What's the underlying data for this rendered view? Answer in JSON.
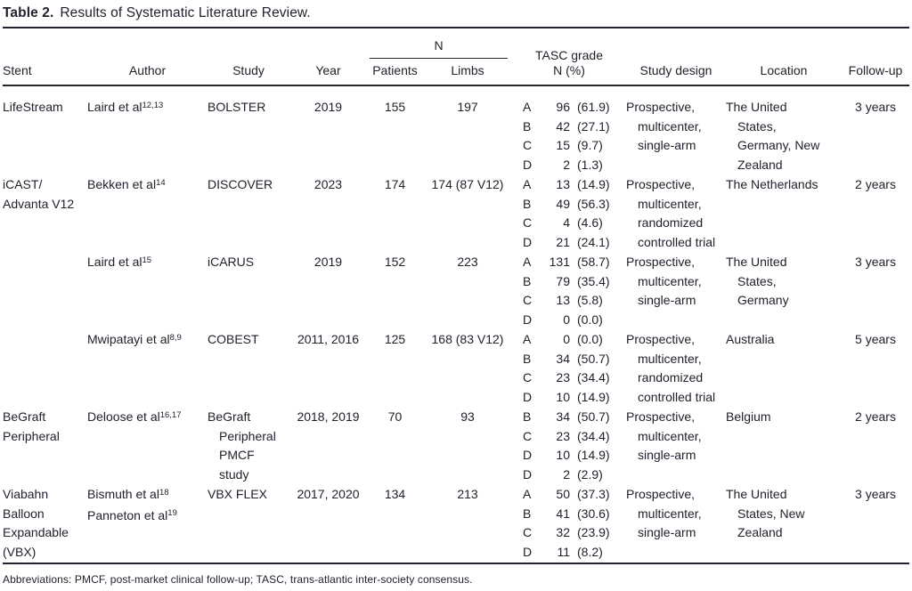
{
  "title": {
    "label": "Table 2.",
    "text": "Results of Systematic Literature Review."
  },
  "colors": {
    "ink": "#20222d",
    "rule": "#23242e",
    "background": "#ffffff"
  },
  "header": {
    "stent": "Stent",
    "author": "Author",
    "study": "Study",
    "year": "Year",
    "n_group": "N",
    "patients": "Patients",
    "limbs": "Limbs",
    "tasc": "TASC grade\nN (%)",
    "design": "Study design",
    "location": "Location",
    "followup": "Follow-up"
  },
  "rows": [
    {
      "stent": "LifeStream",
      "author": [
        {
          "text": "Laird et al",
          "sup": "12,13"
        }
      ],
      "study": "BOLSTER",
      "year": "2019",
      "patients": "155",
      "limbs": "197",
      "tasc": [
        {
          "grade": "A",
          "n": "96",
          "pct": "(61.9)"
        },
        {
          "grade": "B",
          "n": "42",
          "pct": "(27.1)"
        },
        {
          "grade": "C",
          "n": "15",
          "pct": "(9.7)"
        },
        {
          "grade": "D",
          "n": "2",
          "pct": "(1.3)"
        }
      ],
      "design": "Prospective,\nmulticenter,\nsingle-arm",
      "location": "The United\nStates,\nGermany, New\nZealand",
      "followup": "3 years"
    },
    {
      "stent": "iCAST/\nAdvanta V12",
      "author": [
        {
          "text": "Bekken et al",
          "sup": "14"
        }
      ],
      "study": "DISCOVER",
      "year": "2023",
      "patients": "174",
      "limbs": "174 (87 V12)",
      "tasc": [
        {
          "grade": "A",
          "n": "13",
          "pct": "(14.9)"
        },
        {
          "grade": "B",
          "n": "49",
          "pct": "(56.3)"
        },
        {
          "grade": "C",
          "n": "4",
          "pct": "(4.6)"
        },
        {
          "grade": "D",
          "n": "21",
          "pct": "(24.1)"
        }
      ],
      "design": "Prospective,\nmulticenter,\nrandomized\ncontrolled trial",
      "location": "The Netherlands",
      "followup": "2 years"
    },
    {
      "stent": "",
      "author": [
        {
          "text": "Laird et al",
          "sup": "15"
        }
      ],
      "study": "iCARUS",
      "year": "2019",
      "patients": "152",
      "limbs": "223",
      "tasc": [
        {
          "grade": "A",
          "n": "131",
          "pct": "(58.7)"
        },
        {
          "grade": "B",
          "n": "79",
          "pct": "(35.4)"
        },
        {
          "grade": "C",
          "n": "13",
          "pct": "(5.8)"
        },
        {
          "grade": "D",
          "n": "0",
          "pct": "(0.0)"
        }
      ],
      "design": "Prospective,\nmulticenter,\nsingle-arm",
      "location": "The United\nStates,\nGermany",
      "followup": "3 years"
    },
    {
      "stent": "",
      "author": [
        {
          "text": "Mwipatayi et al",
          "sup": "8,9"
        }
      ],
      "study": "COBEST",
      "year": "2011, 2016",
      "patients": "125",
      "limbs": "168 (83 V12)",
      "tasc": [
        {
          "grade": "A",
          "n": "0",
          "pct": "(0.0)"
        },
        {
          "grade": "B",
          "n": "34",
          "pct": "(50.7)"
        },
        {
          "grade": "C",
          "n": "23",
          "pct": "(34.4)"
        },
        {
          "grade": "D",
          "n": "10",
          "pct": "(14.9)"
        }
      ],
      "design": "Prospective,\nmulticenter,\nrandomized\ncontrolled trial",
      "location": "Australia",
      "followup": "5 years"
    },
    {
      "stent": "BeGraft\nPeripheral",
      "author": [
        {
          "text": "Deloose et al",
          "sup": "16,17"
        }
      ],
      "study": "BeGraft\nPeripheral\nPMCF\nstudy",
      "year": "2018, 2019",
      "patients": "70",
      "limbs": "93",
      "tasc": [
        {
          "grade": "B",
          "n": "34",
          "pct": "(50.7)"
        },
        {
          "grade": "C",
          "n": "23",
          "pct": "(34.4)"
        },
        {
          "grade": "D",
          "n": "10",
          "pct": "(14.9)"
        },
        {
          "grade": "D",
          "n": "2",
          "pct": "(2.9)"
        }
      ],
      "design": "Prospective,\nmulticenter,\nsingle-arm",
      "location": "Belgium",
      "followup": "2 years"
    },
    {
      "stent": "Viabahn\nBalloon\nExpandable\n(VBX)",
      "author": [
        {
          "text": "Bismuth et al",
          "sup": "18"
        },
        {
          "text": "Panneton et al",
          "sup": "19"
        }
      ],
      "study": "VBX FLEX",
      "year": "2017, 2020",
      "patients": "134",
      "limbs": "213",
      "tasc": [
        {
          "grade": "A",
          "n": "50",
          "pct": "(37.3)"
        },
        {
          "grade": "B",
          "n": "41",
          "pct": "(30.6)"
        },
        {
          "grade": "C",
          "n": "32",
          "pct": "(23.9)"
        },
        {
          "grade": "D",
          "n": "11",
          "pct": "(8.2)"
        }
      ],
      "design": "Prospective,\nmulticenter,\nsingle-arm",
      "location": "The United\nStates, New\nZealand",
      "followup": "3 years"
    }
  ],
  "footnote": "Abbreviations: PMCF, post-market clinical follow-up; TASC, trans-atlantic inter-society consensus."
}
